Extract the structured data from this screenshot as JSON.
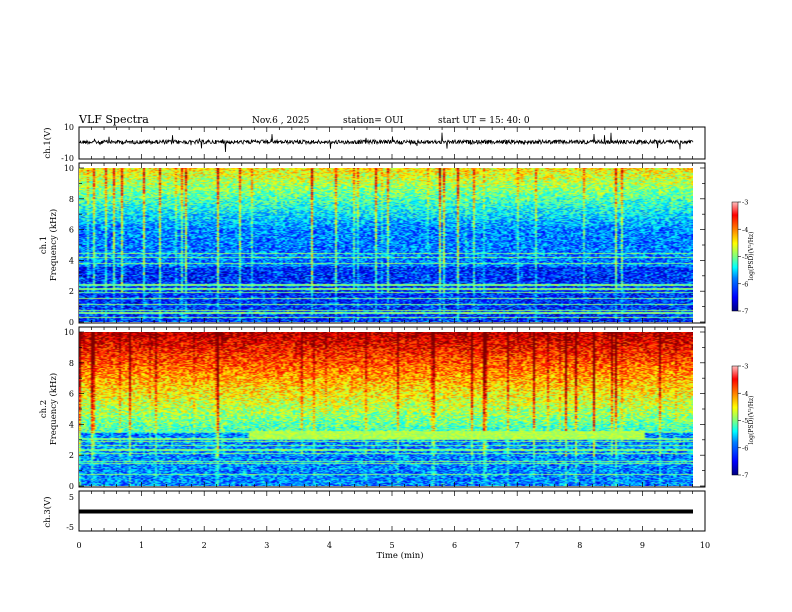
{
  "header": {
    "title": "VLF Spectra",
    "date": "Nov.6  , 2025",
    "station": "station= OUI",
    "start_time": "start  UT  =   15: 40: 0"
  },
  "chart_data": [
    {
      "id": "ch1_waveform",
      "type": "line",
      "ylabel": "ch.1(V)",
      "ylim": [
        -10,
        10
      ],
      "yticks": [
        "10",
        "-10"
      ],
      "xlim": [
        0,
        10
      ],
      "color": "#000000",
      "description_level": 0
    },
    {
      "id": "ch1_spectrogram",
      "type": "heatmap",
      "ylabel": "ch.1\nFrequency  (kHz)",
      "ylabel_lines": [
        "ch.1",
        "Frequency  (kHz)"
      ],
      "ylim": [
        0,
        10
      ],
      "yticks": [
        "0",
        "2",
        "4",
        "6",
        "8",
        "10"
      ],
      "xlim": [
        0,
        9.8
      ],
      "colorbar": {
        "label": "log(PSD)(V²/Hz)",
        "range": [
          -7,
          -3
        ],
        "ticks": [
          "-3",
          "-4",
          "-5",
          "-6",
          "-7"
        ]
      }
    },
    {
      "id": "ch2_spectrogram",
      "type": "heatmap",
      "ylabel_lines": [
        "ch.2",
        "Frequency  (kHz)"
      ],
      "ylim": [
        0,
        10
      ],
      "yticks": [
        "0",
        "2",
        "4",
        "6",
        "8",
        "10"
      ],
      "xlim": [
        0,
        9.8
      ],
      "colorbar": {
        "label": "log(PSD)(V²/Hz)",
        "range": [
          -7,
          -3
        ],
        "ticks": [
          "-3",
          "-4",
          "-5",
          "-6",
          "-7"
        ]
      },
      "features": [
        {
          "name": "narrowband line",
          "frequency_khz": 3.3,
          "start_min": 2.7,
          "end_min": 9.0
        }
      ]
    },
    {
      "id": "ch3_waveform",
      "type": "line",
      "ylabel": "ch.3(V)",
      "ylim": [
        -5,
        5
      ],
      "yticks": [
        "5",
        "-5"
      ],
      "xlim": [
        0,
        10
      ],
      "level": -1
    }
  ],
  "x_axis": {
    "label": "Time  (min)",
    "ticks": [
      "0",
      "1",
      "2",
      "3",
      "4",
      "5",
      "6",
      "7",
      "8",
      "9",
      "10"
    ]
  },
  "colors": {
    "jet": [
      "#00007f",
      "#0000ff",
      "#007fff",
      "#00ffff",
      "#7fff7f",
      "#ffff00",
      "#ff7f00",
      "#ff0000",
      "#7f0000"
    ]
  }
}
